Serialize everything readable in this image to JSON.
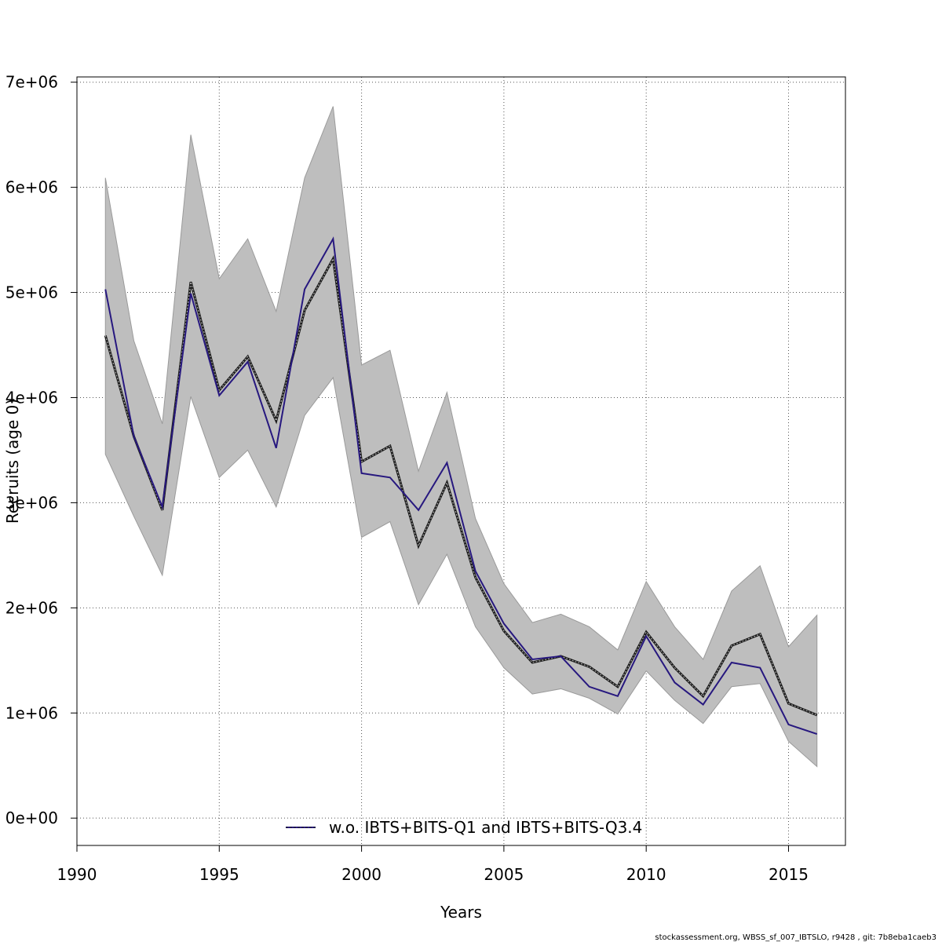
{
  "chart_data": {
    "type": "line",
    "xlabel": "Years",
    "ylabel": "Recruits (age 0)",
    "xlim": [
      1990,
      2017
    ],
    "ylim": [
      -260000,
      7050000
    ],
    "x_ticks": [
      1990,
      1995,
      2000,
      2005,
      2010,
      2015
    ],
    "x_tick_labels": [
      "1990",
      "1995",
      "2000",
      "2005",
      "2010",
      "2015"
    ],
    "y_ticks": [
      0,
      1000000,
      2000000,
      3000000,
      4000000,
      5000000,
      6000000,
      7000000
    ],
    "y_tick_labels": [
      "0e+00",
      "1e+06",
      "2e+06",
      "3e+06",
      "4e+06",
      "5e+06",
      "6e+06",
      "7e+06"
    ],
    "grid": true,
    "legend_position": "bottom-center",
    "x": [
      1991,
      1992,
      1993,
      1994,
      1995,
      1996,
      1997,
      1998,
      1999,
      2000,
      2001,
      2002,
      2003,
      2004,
      2005,
      2006,
      2007,
      2008,
      2009,
      2010,
      2011,
      2012,
      2013,
      2014,
      2015,
      2016
    ],
    "band": {
      "upper": [
        6090000,
        4540000,
        3750000,
        6500000,
        5130000,
        5510000,
        4820000,
        6090000,
        6770000,
        4310000,
        4450000,
        3300000,
        4050000,
        2850000,
        2230000,
        1860000,
        1940000,
        1820000,
        1600000,
        2250000,
        1820000,
        1510000,
        2160000,
        2400000,
        1630000,
        1930000
      ],
      "lower": [
        3460000,
        2870000,
        2310000,
        4010000,
        3240000,
        3500000,
        2960000,
        3830000,
        4190000,
        2670000,
        2820000,
        2030000,
        2510000,
        1820000,
        1430000,
        1180000,
        1230000,
        1140000,
        990000,
        1400000,
        1120000,
        900000,
        1250000,
        1280000,
        730000,
        490000
      ],
      "color": "#bebebe"
    },
    "series": [
      {
        "values": [
          4590000,
          3630000,
          2930000,
          5100000,
          4070000,
          4390000,
          3780000,
          4830000,
          5320000,
          3390000,
          3540000,
          2590000,
          3190000,
          2290000,
          1780000,
          1480000,
          1540000,
          1440000,
          1250000,
          1770000,
          1430000,
          1160000,
          1640000,
          1750000,
          1090000,
          980000
        ],
        "color": "#1a1a1a",
        "style": "dashed"
      },
      {
        "name": "w.o. IBTS+BITS-Q1 and IBTS+BITS-Q3.4",
        "values": [
          5030000,
          3630000,
          2960000,
          4990000,
          4020000,
          4340000,
          3520000,
          5030000,
          5510000,
          3280000,
          3240000,
          2930000,
          3380000,
          2350000,
          1850000,
          1510000,
          1540000,
          1250000,
          1160000,
          1730000,
          1290000,
          1080000,
          1480000,
          1430000,
          890000,
          800000
        ],
        "color": "#27187f",
        "style": "solid"
      }
    ],
    "legend": {
      "label": "w.o. IBTS+BITS-Q1 and IBTS+BITS-Q3.4",
      "line_color": "#27187f"
    }
  },
  "footer": {
    "text": "stockassessment.org, WBSS_sf_007_IBTSLO, r9428 , git: 7b8eba1caeb3"
  }
}
